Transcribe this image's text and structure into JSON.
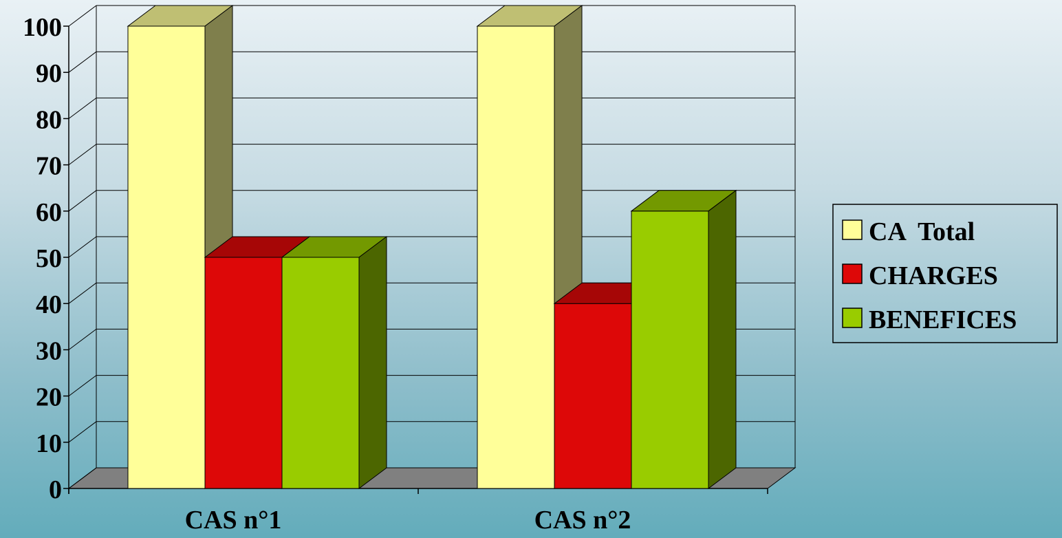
{
  "chart_data": {
    "type": "bar",
    "style": "3d-clustered-column",
    "categories": [
      "CAS n°1",
      "CAS n°2"
    ],
    "series": [
      {
        "name": "CA  Total",
        "values": [
          100,
          100
        ],
        "color": "#ffff99",
        "side_color": "#7f7f4c",
        "top_color": "#bfbf73"
      },
      {
        "name": "CHARGES",
        "values": [
          50,
          40
        ],
        "color": "#dd0808",
        "side_color": "#6e0404",
        "top_color": "#a60606"
      },
      {
        "name": "BENEFICES",
        "values": [
          50,
          60
        ],
        "color": "#99cc00",
        "side_color": "#4c6600",
        "top_color": "#739900"
      }
    ],
    "y_ticks": [
      "0",
      "10",
      "20",
      "30",
      "40",
      "50",
      "60",
      "70",
      "80",
      "90",
      "100"
    ],
    "ylim": [
      0,
      100
    ],
    "y_step": 10,
    "grid": true,
    "legend_position": "right",
    "title": "",
    "xlabel": "",
    "ylabel": ""
  },
  "colors": {
    "floor": "#808080",
    "walls": "none",
    "gridline": "#000000"
  }
}
